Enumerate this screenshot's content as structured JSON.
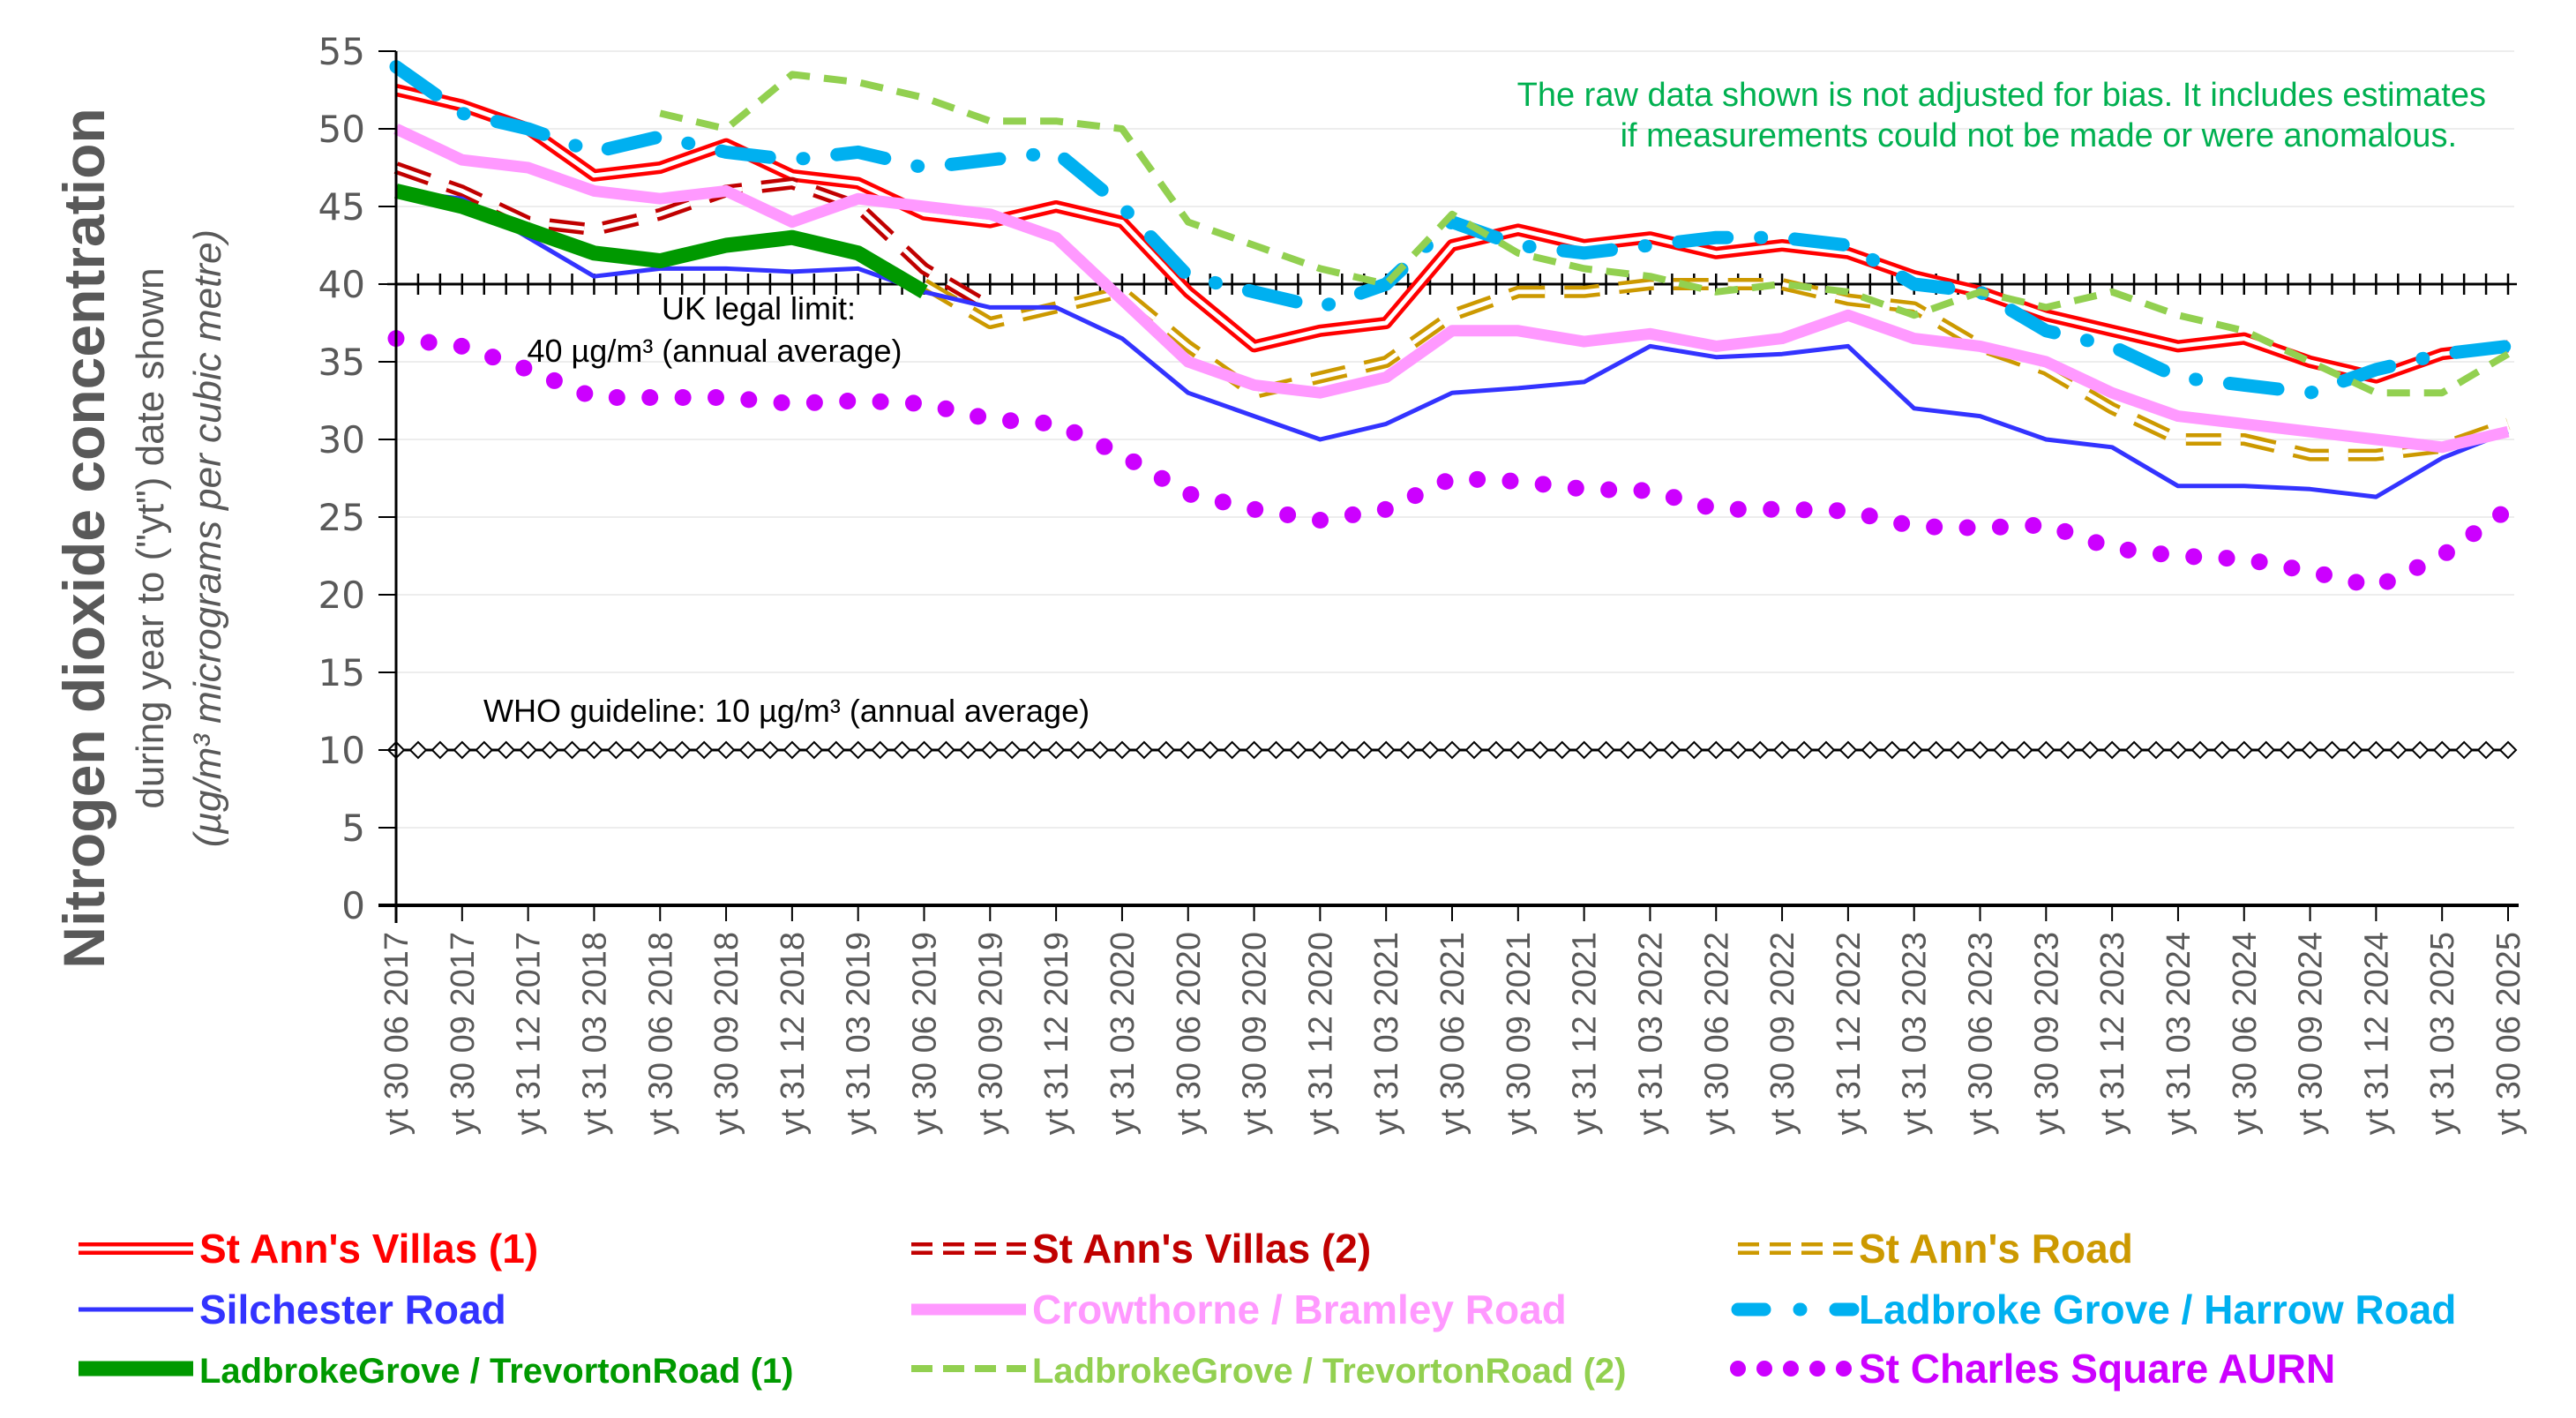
{
  "chart_data": {
    "type": "line",
    "title": "",
    "ylabel": "Nitrogen dioxide concentration",
    "ylabel_sub1": "during year to (\"yt\") date shown",
    "ylabel_sub2": "(µg/m³ micrograms per cubic metre)",
    "ylim": [
      0,
      55
    ],
    "yticks": [
      0,
      5,
      10,
      15,
      20,
      25,
      30,
      35,
      40,
      45,
      50,
      55
    ],
    "grid": "horizontal, faint",
    "legend_position": "bottom",
    "note_lines": [
      "The raw data shown is not adjusted for bias.  It includes estimates",
      "if measurements could not be made or were anomalous."
    ],
    "x": [
      "yt 30 06 2017",
      "yt 30 09 2017",
      "yt 31 12 2017",
      "yt 31 03 2018",
      "yt 30 06 2018",
      "yt 30 09 2018",
      "yt 31 12 2018",
      "yt 31 03 2019",
      "yt 30 06 2019",
      "yt 30 09 2019",
      "yt 31 12 2019",
      "yt 31 03 2020",
      "yt 30 06 2020",
      "yt 30 09 2020",
      "yt 31 12 2020",
      "yt 31 03 2021",
      "yt 30 06 2021",
      "yt 30 09 2021",
      "yt 31 12 2021",
      "yt 31 03 2022",
      "yt 30 06 2022",
      "yt 30 09 2022",
      "yt 31 12 2022",
      "yt 31 03 2023",
      "yt 30 06 2023",
      "yt 30 09 2023",
      "yt 31 12 2023",
      "yt 31 03 2024",
      "yt 30 06 2024",
      "yt 30 09 2024",
      "yt 31 12 2024",
      "yt 31 03 2025",
      "yt 30 06 2025"
    ],
    "reference_lines": [
      {
        "value": 40,
        "label_lines": [
          "UK legal limit:",
          "40 µg/m³ (annual average)"
        ],
        "marker": "plus"
      },
      {
        "value": 10,
        "label_lines": [
          "WHO guideline: 10 µg/m³ (annual average)"
        ],
        "marker": "diamond"
      }
    ],
    "series": [
      {
        "name": "St Ann's Villas (1)",
        "color": "#FF0000",
        "style": "double",
        "values": [
          52.5,
          51.5,
          50,
          47,
          47.5,
          49,
          47,
          46.5,
          44.5,
          44,
          45,
          44,
          39.5,
          36,
          37,
          37.5,
          42.5,
          43.5,
          42.5,
          43,
          42,
          42.5,
          42,
          40.5,
          39.5,
          38,
          37,
          36,
          36.5,
          35,
          34,
          35.5,
          36
        ]
      },
      {
        "name": "St Ann's Villas (2)",
        "color": "#C00000",
        "style": "double-dashed",
        "values": [
          47.5,
          46,
          44,
          43.5,
          44.5,
          46,
          46.5,
          45,
          41,
          38.5,
          null,
          null,
          null,
          null,
          null,
          null,
          null,
          null,
          null,
          null,
          null,
          null,
          null,
          null,
          null,
          null,
          null,
          null,
          null,
          null,
          null,
          null,
          null
        ]
      },
      {
        "name": "St Ann's Road",
        "color": "#CC9900",
        "style": "double-dashed",
        "values": [
          null,
          null,
          null,
          null,
          null,
          null,
          null,
          null,
          40,
          37.5,
          38.5,
          39.5,
          36,
          33,
          34,
          35,
          38,
          39.5,
          39.5,
          40,
          40,
          40,
          39,
          38.5,
          36,
          34.5,
          32,
          30,
          30,
          29,
          29,
          29.5,
          31
        ]
      },
      {
        "name": "Silchester Road",
        "color": "#3333FF",
        "style": "thin",
        "values": [
          46,
          45.5,
          43,
          40.5,
          41,
          41,
          40.8,
          41,
          39.5,
          38.5,
          38.5,
          36.5,
          33,
          31.5,
          30,
          31,
          33,
          33.3,
          33.7,
          36,
          35.3,
          35.5,
          36,
          32,
          31.5,
          30,
          29.5,
          27,
          27,
          26.8,
          26.3,
          28.8,
          30.5
        ]
      },
      {
        "name": "Crowthorne / Bramley Road",
        "color": "#FF99FF",
        "style": "thick",
        "values": [
          50,
          48,
          47.5,
          46,
          45.5,
          46,
          44,
          45.5,
          45,
          44.5,
          43,
          39,
          35,
          33.5,
          33,
          34,
          37,
          37,
          36.3,
          36.8,
          36,
          36.5,
          38,
          36.5,
          36,
          35,
          33,
          31.5,
          31,
          30.5,
          30,
          29.5,
          30.5
        ]
      },
      {
        "name": "Ladbroke Grove / Harrow Road",
        "color": "#00B0F0",
        "style": "dash-dot",
        "values": [
          54,
          51,
          50,
          48.5,
          49.5,
          48.5,
          48,
          48.5,
          47.5,
          48,
          48.5,
          45,
          40.5,
          39.5,
          38.5,
          40,
          44,
          42.5,
          42,
          42.5,
          43,
          43,
          42.5,
          40,
          39.5,
          37,
          36,
          34,
          33.5,
          33,
          34.5,
          35.5,
          36
        ]
      },
      {
        "name": "LadbrokeGrove / TrevortonRoad (1)",
        "color": "#009900",
        "style": "heavy",
        "values": [
          46,
          45,
          43.5,
          42,
          41.5,
          42.5,
          43,
          42,
          39.5,
          null,
          null,
          null,
          null,
          null,
          null,
          null,
          null,
          null,
          null,
          null,
          null,
          null,
          null,
          null,
          null,
          null,
          null,
          null,
          null,
          null,
          null,
          null,
          null
        ]
      },
      {
        "name": "LadbrokeGrove / TrevortonRoad (2)",
        "color": "#92D050",
        "style": "dashed",
        "values": [
          null,
          null,
          null,
          null,
          51,
          50,
          53.5,
          53,
          52,
          50.5,
          50.5,
          50,
          44,
          42.5,
          41,
          40,
          44.5,
          42,
          41,
          40.5,
          39.5,
          40,
          39.5,
          38,
          39.5,
          38.5,
          39.5,
          38,
          37,
          35,
          33,
          33,
          35.5
        ]
      },
      {
        "name": "St Charles Square AURN",
        "color": "#CC00FF",
        "style": "dotted",
        "values": [
          36.5,
          36,
          34.5,
          32.7,
          32.7,
          32.7,
          32.3,
          32.5,
          32.3,
          31.3,
          31,
          29,
          26.5,
          25.5,
          24.8,
          25.5,
          27.5,
          27.3,
          26.8,
          26.7,
          25.5,
          25.5,
          25.4,
          24.4,
          24.3,
          24.5,
          23,
          22.5,
          22.3,
          21.5,
          20.5,
          22.5,
          25.5
        ]
      }
    ]
  }
}
